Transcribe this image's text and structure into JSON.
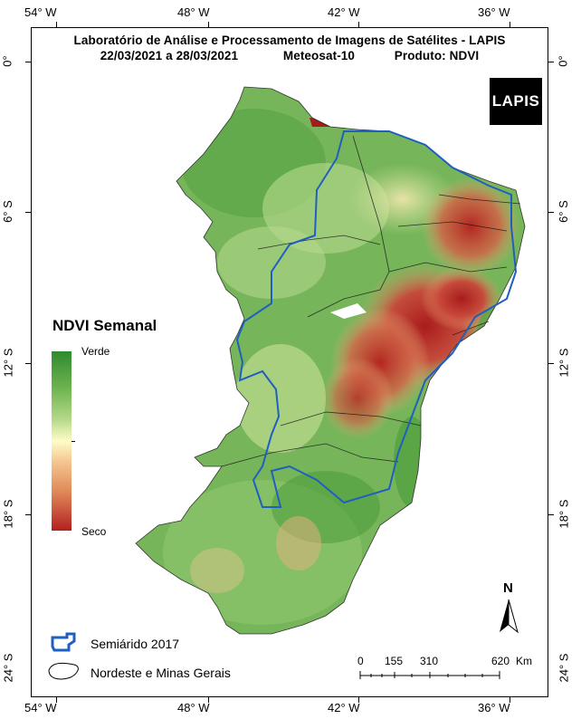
{
  "title": {
    "line1": "Laboratório de Análise e Processamento de Imagens de Satélites - LAPIS",
    "dates": "22/03/2021  a  28/03/2021",
    "satellite": "Meteosat-10",
    "product": "Produto: NDVI"
  },
  "logo_text": "LAPIS",
  "longitude_labels": [
    "54° W",
    "48° W",
    "42° W",
    "36° W"
  ],
  "latitude_labels": [
    "0°",
    "6° S",
    "12° S",
    "18° S",
    "24° S"
  ],
  "legend": {
    "title": "NDVI Semanal",
    "high_label": "Verde",
    "low_label": "Seco",
    "items": [
      {
        "label": "Semiárido 2017",
        "color": "#1f5fbf"
      },
      {
        "label": "Nordeste e Minas Gerais",
        "color": "#000000"
      }
    ]
  },
  "scale_bar": {
    "ticks": [
      "0",
      "155",
      "310",
      "620"
    ],
    "unit": "Km"
  },
  "north_arrow_label": "N",
  "colors": {
    "green": "#4f9e3c",
    "light_green": "#b9db8d",
    "dry_red": "#b8261f",
    "semiarid_outline": "#1f5fbf"
  }
}
